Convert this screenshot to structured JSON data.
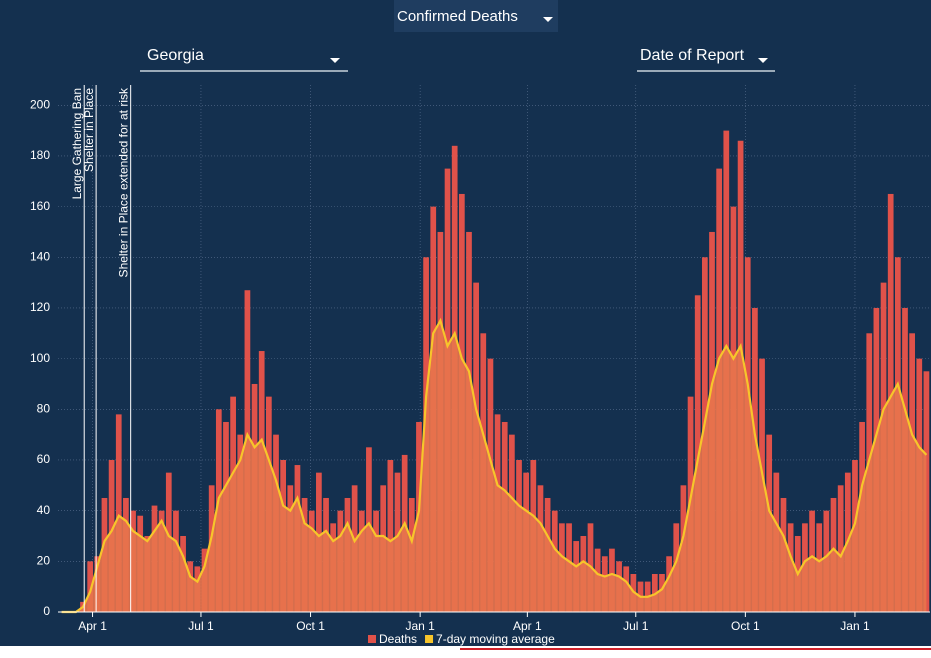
{
  "controls": {
    "metric": "Confirmed Deaths",
    "region": "Georgia",
    "date_basis": "Date of Report"
  },
  "chart_data": {
    "type": "bar",
    "x": [
      5,
      11,
      17,
      23,
      29,
      35,
      41,
      47,
      53,
      59,
      65,
      71,
      77,
      83,
      89,
      95,
      101,
      107,
      113,
      119,
      125,
      131,
      137,
      143,
      149,
      155,
      161,
      167,
      173,
      179,
      185,
      191,
      197,
      203,
      209,
      215,
      221,
      227,
      233,
      239,
      245,
      251,
      257,
      263,
      269,
      275,
      281,
      287,
      293,
      299,
      305,
      311,
      317,
      323,
      329,
      335,
      341,
      347,
      353,
      359,
      365,
      371,
      377,
      383,
      389,
      395,
      401,
      407,
      413,
      419,
      425,
      431,
      437,
      443,
      449,
      455,
      461,
      467,
      473,
      479,
      485,
      491,
      497,
      503,
      509,
      515,
      521,
      527,
      533,
      539,
      545,
      551,
      557,
      563,
      569,
      575,
      581,
      587,
      593,
      599,
      605,
      611,
      617,
      623,
      629,
      635,
      641,
      647,
      653,
      659,
      665,
      671,
      677,
      683,
      689,
      695,
      701,
      707,
      713,
      719,
      725,
      731
    ],
    "series": [
      {
        "name": "Deaths",
        "color": "#e0524a",
        "values": [
          0,
          0,
          0,
          4,
          20,
          22,
          45,
          60,
          78,
          45,
          40,
          38,
          30,
          42,
          40,
          55,
          40,
          30,
          20,
          18,
          25,
          50,
          80,
          75,
          85,
          70,
          127,
          90,
          103,
          85,
          70,
          60,
          50,
          58,
          45,
          40,
          55,
          45,
          35,
          40,
          45,
          50,
          40,
          65,
          40,
          50,
          60,
          55,
          62,
          45,
          75,
          140,
          160,
          150,
          175,
          184,
          165,
          150,
          130,
          110,
          100,
          78,
          75,
          70,
          60,
          55,
          60,
          50,
          45,
          40,
          35,
          35,
          28,
          30,
          35,
          25,
          22,
          25,
          20,
          18,
          15,
          12,
          12,
          15,
          15,
          22,
          35,
          50,
          85,
          125,
          140,
          150,
          175,
          190,
          160,
          186,
          140,
          120,
          100,
          70,
          55,
          45,
          35,
          30,
          35,
          40,
          35,
          40,
          45,
          50,
          55,
          60,
          75,
          110,
          120,
          130,
          165,
          140,
          120,
          110,
          100,
          95
        ]
      },
      {
        "name": "7-day moving average",
        "color": "#f7c52b",
        "type": "line",
        "area_color": "#e8744c",
        "values": [
          0,
          0,
          0,
          2,
          8,
          18,
          28,
          32,
          38,
          36,
          32,
          30,
          28,
          32,
          36,
          30,
          28,
          22,
          14,
          12,
          18,
          30,
          45,
          50,
          55,
          60,
          70,
          65,
          68,
          60,
          52,
          42,
          40,
          45,
          35,
          33,
          30,
          32,
          28,
          30,
          35,
          28,
          32,
          35,
          30,
          30,
          28,
          30,
          35,
          28,
          40,
          85,
          110,
          115,
          105,
          110,
          100,
          95,
          80,
          70,
          60,
          50,
          48,
          45,
          42,
          40,
          38,
          35,
          30,
          25,
          22,
          20,
          18,
          20,
          18,
          15,
          14,
          15,
          14,
          12,
          8,
          6,
          6,
          7,
          9,
          14,
          20,
          30,
          45,
          60,
          75,
          90,
          100,
          105,
          100,
          105,
          90,
          70,
          55,
          40,
          35,
          30,
          22,
          15,
          20,
          22,
          20,
          22,
          25,
          22,
          28,
          35,
          50,
          60,
          70,
          80,
          85,
          90,
          80,
          70,
          65,
          62
        ]
      }
    ],
    "xlim": [
      2,
      734
    ],
    "xticks": [
      {
        "value": 31,
        "label": "Apr 1"
      },
      {
        "value": 122,
        "label": "Jul 1"
      },
      {
        "value": 214,
        "label": "Oct 1"
      },
      {
        "value": 306,
        "label": "Jan 1"
      },
      {
        "value": 396,
        "label": "Apr 1"
      },
      {
        "value": 487,
        "label": "Jul 1"
      },
      {
        "value": 579,
        "label": "Oct 1"
      },
      {
        "value": 671,
        "label": "Jan 1"
      }
    ],
    "ylim": [
      0,
      208
    ],
    "yticks": [
      0,
      20,
      40,
      60,
      80,
      100,
      120,
      140,
      160,
      180,
      200
    ],
    "grid": true,
    "annotations": [
      {
        "text": "Large Gathering Ban",
        "x": 24
      },
      {
        "text": "Shelter in Place",
        "x": 34
      },
      {
        "text": "Shelter in Place extended for at risk",
        "x": 63
      }
    ]
  }
}
